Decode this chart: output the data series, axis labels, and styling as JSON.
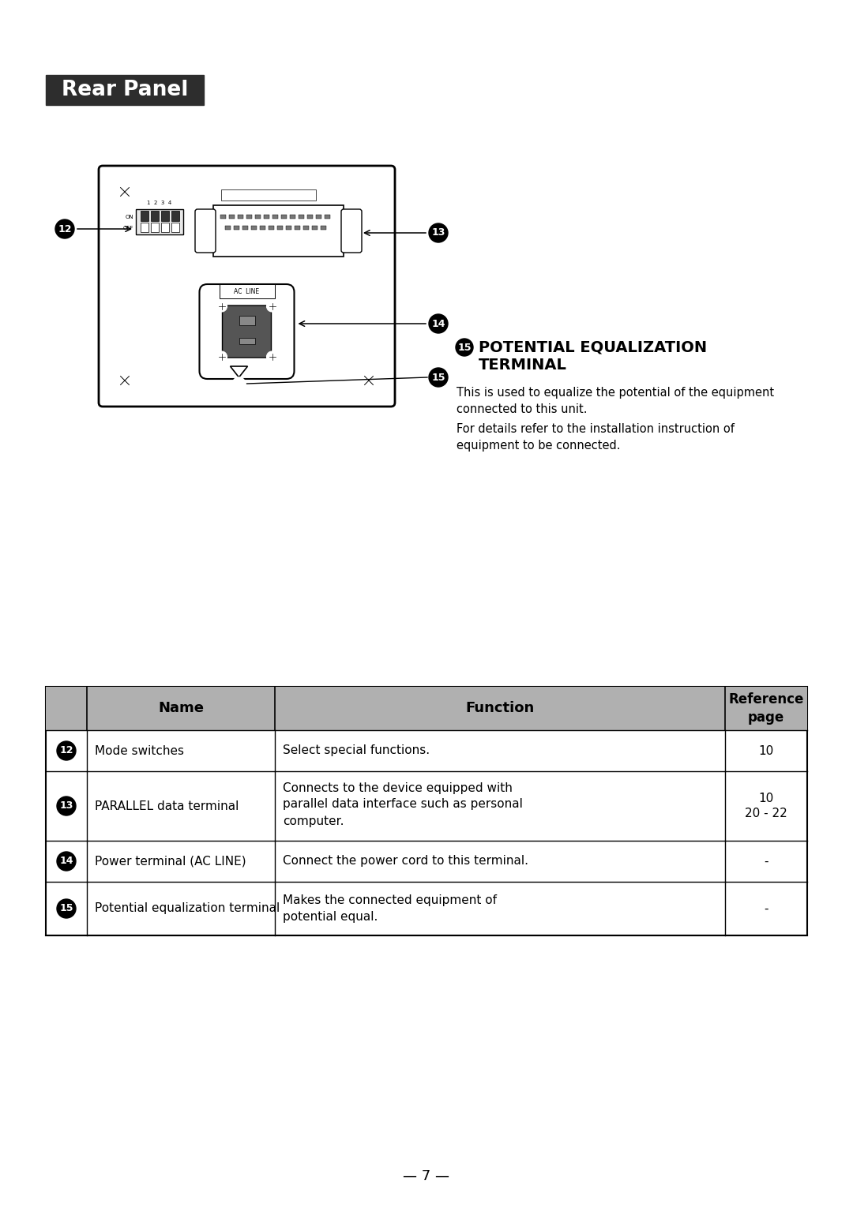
{
  "title": "Rear Panel",
  "title_bg": "#2d2d2d",
  "title_color": "#ffffff",
  "bg_color": "#ffffff",
  "table_header_bg": "#b0b0b0",
  "rows_data": [
    [
      "12",
      "Mode switches",
      "Select special functions.",
      "10"
    ],
    [
      "13",
      "PARALLEL data terminal",
      "Connects to the device equipped with\nparallel data interface such as personal\ncomputer.",
      "10\n20 - 22"
    ],
    [
      "14",
      "Power terminal (AC LINE)",
      "Connect the power cord to this terminal.",
      "-"
    ],
    [
      "15",
      "Potential equalization terminal",
      "Makes the connected equipment of\npotential equal.",
      "-"
    ]
  ],
  "page_num": "— 7 —",
  "pot_title_line1": "× POTENTIAL EQUALIZATION",
  "pot_title_line2": "   TERMINAL",
  "pot_desc1": "This is used to equalize the potential of the equipment\nconnected to this unit.",
  "pot_desc2": "For details refer to the installation instruction of\nequipment to be connected."
}
